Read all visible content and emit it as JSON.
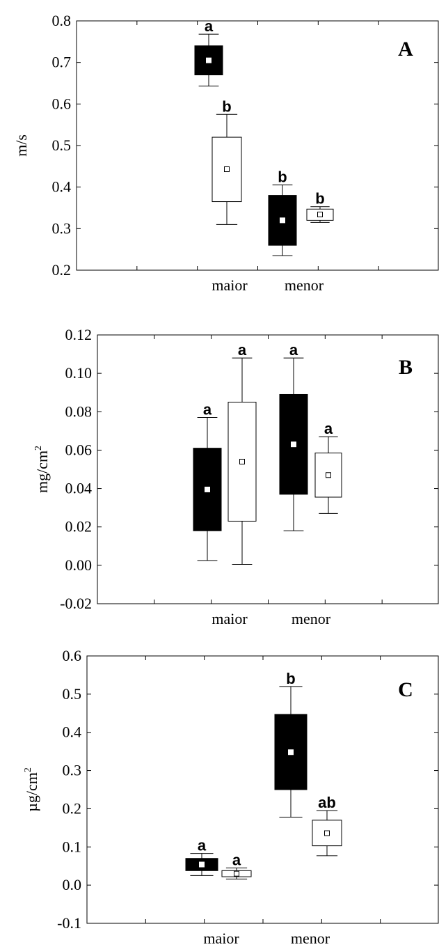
{
  "colors": {
    "filled": "#000000",
    "open": "#ffffff",
    "line": "#000000"
  },
  "chart_data": [
    {
      "type": "box",
      "panel_letter": "A",
      "ylabel": "m/s",
      "ylabel_sup": "",
      "ylim": [
        0.2,
        0.8
      ],
      "yticks": [
        "0.2",
        "0.3",
        "0.4",
        "0.5",
        "0.6",
        "0.7",
        "0.8"
      ],
      "categories": [
        "maior",
        "menor"
      ],
      "boxes": [
        {
          "category": "maior",
          "fill": "filled",
          "q1": 0.67,
          "q3": 0.74,
          "median": 0.705,
          "whisker_low": 0.643,
          "whisker_high": 0.768,
          "label": "a"
        },
        {
          "category": "maior",
          "fill": "open",
          "q1": 0.365,
          "q3": 0.52,
          "median": 0.443,
          "whisker_low": 0.31,
          "whisker_high": 0.575,
          "label": "b"
        },
        {
          "category": "menor",
          "fill": "filled",
          "q1": 0.26,
          "q3": 0.38,
          "median": 0.32,
          "whisker_low": 0.235,
          "whisker_high": 0.405,
          "label": "b"
        },
        {
          "category": "menor",
          "fill": "open",
          "q1": 0.32,
          "q3": 0.347,
          "median": 0.334,
          "whisker_low": 0.315,
          "whisker_high": 0.353,
          "label": "b"
        }
      ]
    },
    {
      "type": "box",
      "panel_letter": "B",
      "ylabel": "mg/cm",
      "ylabel_sup": "2",
      "ylim": [
        -0.02,
        0.12
      ],
      "yticks": [
        "-0.02",
        "0.00",
        "0.02",
        "0.04",
        "0.06",
        "0.08",
        "0.10",
        "0.12"
      ],
      "categories": [
        "maior",
        "menor"
      ],
      "boxes": [
        {
          "category": "maior",
          "fill": "filled",
          "q1": 0.018,
          "q3": 0.061,
          "median": 0.0395,
          "whisker_low": 0.0025,
          "whisker_high": 0.077,
          "label": "a"
        },
        {
          "category": "maior",
          "fill": "open",
          "q1": 0.023,
          "q3": 0.085,
          "median": 0.054,
          "whisker_low": 0.0005,
          "whisker_high": 0.108,
          "label": "a"
        },
        {
          "category": "menor",
          "fill": "filled",
          "q1": 0.037,
          "q3": 0.089,
          "median": 0.063,
          "whisker_low": 0.018,
          "whisker_high": 0.108,
          "label": "a"
        },
        {
          "category": "menor",
          "fill": "open",
          "q1": 0.0355,
          "q3": 0.0585,
          "median": 0.047,
          "whisker_low": 0.027,
          "whisker_high": 0.067,
          "label": "a"
        }
      ]
    },
    {
      "type": "box",
      "panel_letter": "C",
      "ylabel": "µg/cm",
      "ylabel_sup": "2",
      "ylim": [
        -0.1,
        0.6
      ],
      "yticks": [
        "-0.1",
        "0.0",
        "0.1",
        "0.2",
        "0.3",
        "0.4",
        "0.5",
        "0.6"
      ],
      "categories": [
        "maior",
        "menor"
      ],
      "boxes": [
        {
          "category": "maior",
          "fill": "filled",
          "q1": 0.038,
          "q3": 0.07,
          "median": 0.054,
          "whisker_low": 0.025,
          "whisker_high": 0.083,
          "label": "a"
        },
        {
          "category": "maior",
          "fill": "open",
          "q1": 0.022,
          "q3": 0.038,
          "median": 0.03,
          "whisker_low": 0.016,
          "whisker_high": 0.045,
          "label": "a"
        },
        {
          "category": "menor",
          "fill": "filled",
          "q1": 0.25,
          "q3": 0.447,
          "median": 0.348,
          "whisker_low": 0.178,
          "whisker_high": 0.52,
          "label": "b"
        },
        {
          "category": "menor",
          "fill": "open",
          "q1": 0.103,
          "q3": 0.17,
          "median": 0.136,
          "whisker_low": 0.077,
          "whisker_high": 0.195,
          "label": "ab"
        }
      ]
    }
  ]
}
